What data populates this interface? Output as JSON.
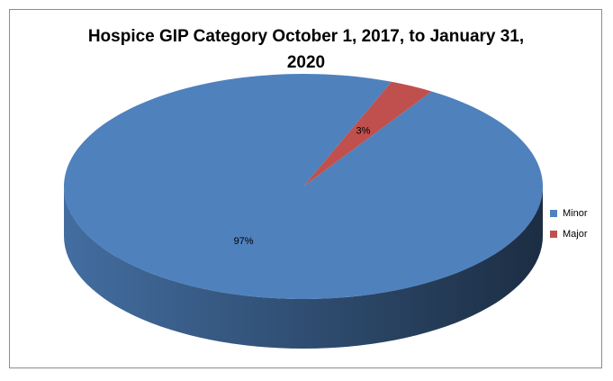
{
  "chart_data": {
    "type": "pie3d",
    "title": "Hospice GIP Category October 1, 2017, to January 31, 2020",
    "categories": [
      "Minor",
      "Major"
    ],
    "values": [
      97,
      3
    ],
    "value_labels": [
      "97%",
      "3%"
    ],
    "colors": [
      "#4f81bd",
      "#c0504d"
    ],
    "legend": "right"
  }
}
